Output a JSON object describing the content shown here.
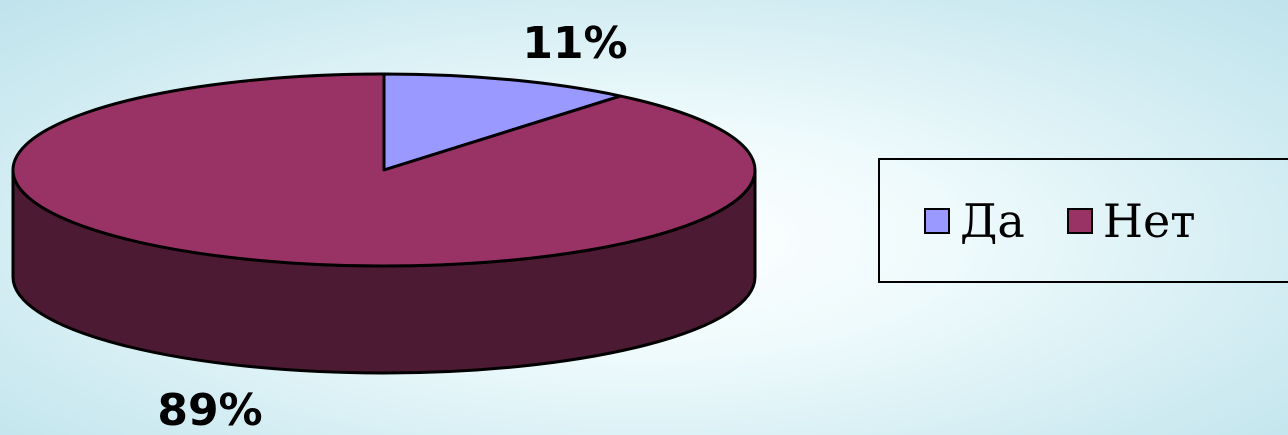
{
  "chart_data": {
    "type": "pie",
    "style": "3d",
    "categories": [
      "Да",
      "Нет"
    ],
    "values": [
      11,
      89
    ],
    "labels": [
      "11%",
      "89%"
    ],
    "legend": {
      "position": "right",
      "entries": [
        "Да",
        "Нет"
      ]
    },
    "colors": {
      "Да": "#9999ff",
      "Нет": "#993366",
      "Нет_side": "#4c1a33"
    }
  }
}
